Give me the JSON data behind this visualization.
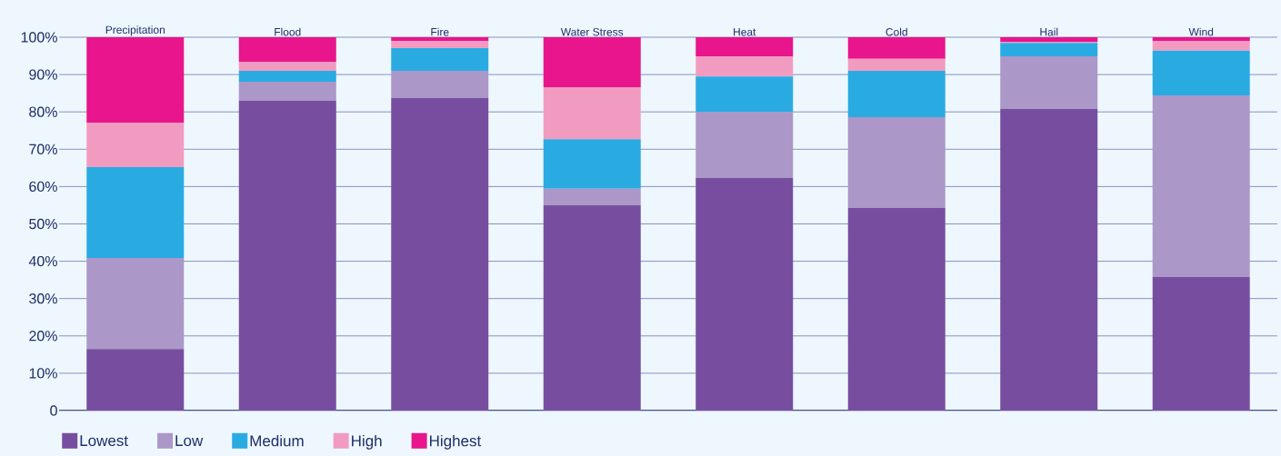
{
  "chart_data": {
    "type": "bar",
    "stacked": true,
    "categories": [
      "Precipitation",
      "Flood",
      "Fire",
      "Water Stress",
      "Heat",
      "Cold",
      "Hail",
      "Wind"
    ],
    "series": [
      {
        "name": "Lowest",
        "color": "#774e9f",
        "values": [
          16.5,
          83.0,
          83.7,
          55.0,
          62.3,
          54.3,
          80.8,
          35.8
        ]
      },
      {
        "name": "Low",
        "color": "#ab97c8",
        "values": [
          24.4,
          5.1,
          7.3,
          4.4,
          17.7,
          24.3,
          14.1,
          48.6
        ]
      },
      {
        "name": "Medium",
        "color": "#29abe2",
        "values": [
          24.3,
          2.9,
          6.1,
          13.3,
          9.5,
          12.4,
          3.6,
          12.0
        ]
      },
      {
        "name": "High",
        "color": "#f29bc1",
        "values": [
          11.9,
          2.4,
          1.9,
          13.9,
          5.4,
          3.2,
          0.3,
          2.6
        ]
      },
      {
        "name": "Highest",
        "color": "#e8158c",
        "values": [
          22.9,
          6.6,
          1.0,
          13.4,
          5.1,
          5.8,
          1.2,
          1.0
        ]
      }
    ],
    "ylim": [
      0,
      100
    ],
    "yticks": [
      0,
      {
        "value": 10,
        "label": "10%"
      },
      {
        "value": 20,
        "label": "20%"
      },
      {
        "value": 30,
        "label": "30%"
      },
      {
        "value": 40,
        "label": "40%"
      },
      {
        "value": 50,
        "label": "50%"
      },
      {
        "value": 60,
        "label": "60%"
      },
      {
        "value": 70,
        "label": "70%"
      },
      {
        "value": 80,
        "label": "80%"
      },
      {
        "value": 90,
        "label": "90%"
      },
      {
        "value": 100,
        "label": "100%"
      }
    ],
    "grid": "y",
    "legend": "bottom"
  }
}
